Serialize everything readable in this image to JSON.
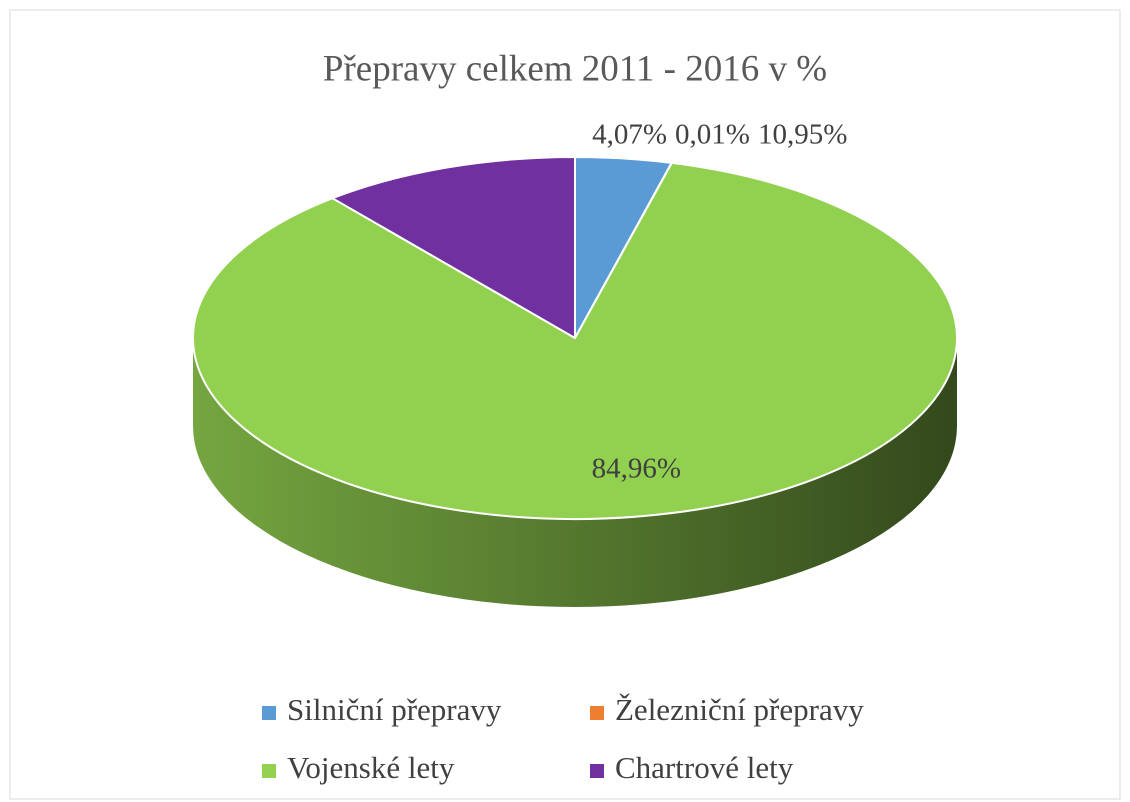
{
  "chart_data": {
    "type": "pie3d",
    "title": "Přepravy celkem 2011 - 2016 v %",
    "categories": [
      "Silniční přepravy",
      "Železniční přepravy",
      "Vojenské lety",
      "Chartrové lety"
    ],
    "values": [
      4.07,
      0.01,
      84.96,
      10.95
    ],
    "value_labels": [
      "4,07%",
      "0,01%",
      "84,96%",
      "10,95%"
    ],
    "colors": [
      "#5b9bd5",
      "#ed7d31",
      "#92d050",
      "#7030a0"
    ],
    "legend": "bottom"
  }
}
